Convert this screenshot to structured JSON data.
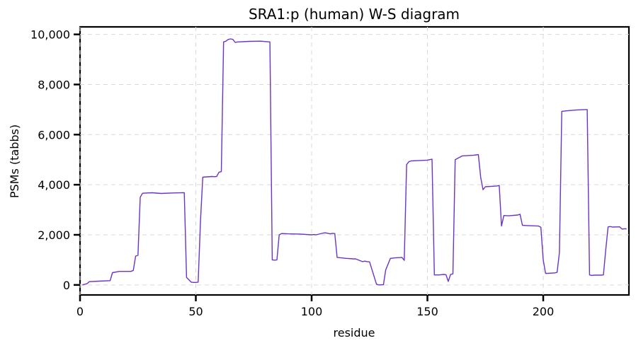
{
  "chart_data": {
    "type": "line",
    "title": "SRA1:p (human) W-S diagram",
    "xlabel": "residue",
    "ylabel": "PSMs (tabbs)",
    "xlim": [
      0,
      237
    ],
    "ylim": [
      -400,
      10300
    ],
    "xticks": [
      0,
      50,
      100,
      150,
      200
    ],
    "xtick_labels": [
      "0",
      "50",
      "100",
      "150",
      "200"
    ],
    "yticks": [
      0,
      2000,
      4000,
      6000,
      8000,
      10000
    ],
    "ytick_labels": [
      "0",
      "2,000",
      "4,000",
      "6,000",
      "8,000",
      "10,000"
    ],
    "grid": true,
    "series": [
      {
        "color": "#6a34c8",
        "x": [
          1,
          3,
          4,
          8,
          13,
          14,
          17,
          22,
          23,
          24,
          25,
          26,
          27,
          31,
          35,
          40,
          44,
          45,
          46,
          48,
          49,
          50,
          51,
          52,
          53,
          57,
          58,
          59,
          60,
          61,
          62,
          63,
          64,
          65,
          66,
          67,
          68,
          73,
          78,
          82,
          83,
          84,
          85,
          86,
          87,
          90,
          95,
          100,
          101,
          102,
          105,
          106,
          108,
          109,
          110,
          111,
          115,
          118,
          119,
          122,
          123,
          124,
          125,
          128,
          129,
          131,
          132,
          134,
          136,
          138,
          139,
          140,
          141,
          142,
          143,
          146,
          150,
          151,
          152,
          153,
          155,
          157,
          158,
          159,
          160,
          161,
          162,
          165,
          170,
          171,
          172,
          173,
          174,
          175,
          180,
          181,
          182,
          183,
          185,
          189,
          190,
          191,
          193,
          198,
          199,
          200,
          201,
          202,
          205,
          206,
          207,
          208,
          210,
          214,
          218,
          219,
          220,
          221,
          222,
          225,
          226,
          227,
          228,
          229,
          230,
          233,
          234,
          235,
          236
        ],
        "y": [
          0,
          50,
          130,
          150,
          170,
          490,
          540,
          540,
          580,
          1150,
          1180,
          3500,
          3660,
          3680,
          3650,
          3670,
          3680,
          3680,
          300,
          110,
          100,
          100,
          110,
          2500,
          4300,
          4330,
          4320,
          4330,
          4500,
          4520,
          9700,
          9730,
          9800,
          9820,
          9800,
          9680,
          9700,
          9720,
          9730,
          9700,
          1000,
          990,
          1000,
          2000,
          2050,
          2040,
          2030,
          2000,
          2010,
          2000,
          2070,
          2080,
          2040,
          2060,
          2050,
          1100,
          1060,
          1040,
          1040,
          930,
          950,
          930,
          920,
          30,
          0,
          10,
          600,
          1060,
          1080,
          1090,
          1100,
          980,
          4800,
          4920,
          4950,
          4960,
          4980,
          5000,
          5020,
          400,
          400,
          420,
          410,
          140,
          420,
          440,
          5000,
          5150,
          5180,
          5190,
          5200,
          4300,
          3800,
          3920,
          3950,
          3970,
          2350,
          2770,
          2760,
          2790,
          2820,
          2380,
          2370,
          2350,
          2300,
          1000,
          460,
          460,
          480,
          500,
          1300,
          6930,
          6950,
          6980,
          7000,
          7000,
          400,
          380,
          390,
          390,
          400,
          1400,
          2320,
          2330,
          2310,
          2320,
          2230,
          2240,
          2240
        ]
      }
    ]
  }
}
